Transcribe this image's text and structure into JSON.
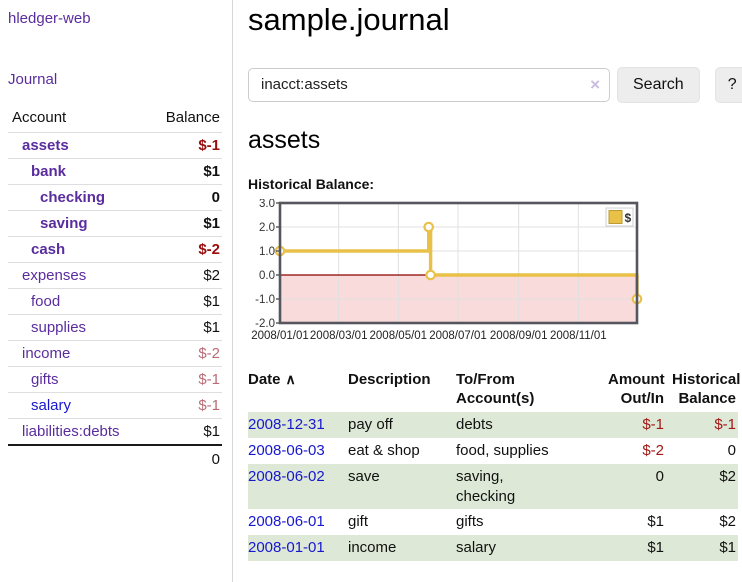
{
  "app": {
    "title": "hledger-web"
  },
  "theme": {
    "purple_link": "#5a2d9e",
    "blue_link": "#1717cf",
    "negative_strong": "#9b0c0c",
    "negative_soft": "#b96c77",
    "row_highlight": "#dde9d6"
  },
  "sidebar": {
    "journal_link": "Journal",
    "accounts": {
      "headers": {
        "account": "Account",
        "balance": "Balance"
      },
      "rows": [
        {
          "label": "assets",
          "indent": 1,
          "bold": true,
          "link_color": "purple",
          "balance": "$-1",
          "balance_style": "negative"
        },
        {
          "label": "bank",
          "indent": 2,
          "bold": true,
          "link_color": "purple",
          "balance": "$1",
          "balance_style": "normal"
        },
        {
          "label": "checking",
          "indent": 3,
          "bold": true,
          "link_color": "purple",
          "balance": "0",
          "balance_style": "normal"
        },
        {
          "label": "saving",
          "indent": 3,
          "bold": true,
          "link_color": "purple",
          "balance": "$1",
          "balance_style": "normal"
        },
        {
          "label": "cash",
          "indent": 2,
          "bold": true,
          "link_color": "purple",
          "balance": "$-2",
          "balance_style": "negative"
        },
        {
          "label": "expenses",
          "indent": 1,
          "bold": false,
          "link_color": "purple",
          "balance": "$2",
          "balance_style": "normal"
        },
        {
          "label": "food",
          "indent": 2,
          "bold": false,
          "link_color": "purple",
          "balance": "$1",
          "balance_style": "normal"
        },
        {
          "label": "supplies",
          "indent": 2,
          "bold": false,
          "link_color": "purple",
          "balance": "$1",
          "balance_style": "normal"
        },
        {
          "label": "income",
          "indent": 1,
          "bold": false,
          "link_color": "purple",
          "balance": "$-2",
          "balance_style": "negative-soft"
        },
        {
          "label": "gifts",
          "indent": 2,
          "bold": false,
          "link_color": "purple",
          "balance": "$-1",
          "balance_style": "negative-soft"
        },
        {
          "label": "salary",
          "indent": 2,
          "bold": false,
          "link_color": "blue",
          "balance": "$-1",
          "balance_style": "negative-soft"
        },
        {
          "label": "liabilities:debts",
          "indent": 1,
          "bold": false,
          "link_color": "purple",
          "balance": "$1",
          "balance_style": "normal"
        }
      ],
      "total": "0"
    }
  },
  "main": {
    "title": "sample.journal",
    "search": {
      "value": "inacct:assets",
      "clear_label": "×",
      "search_button": "Search",
      "help_button": "?"
    },
    "account_heading": "assets",
    "section_label": "Historical Balance:"
  },
  "chart_data": {
    "type": "line",
    "step": true,
    "title": "Historical Balance of assets",
    "x_range": [
      "2008-01-01",
      "2008-12-31"
    ],
    "ylim": [
      -2,
      3
    ],
    "yticks": [
      {
        "value": 3,
        "label": "3.0"
      },
      {
        "value": 2,
        "label": "2.0"
      },
      {
        "value": 1,
        "label": "1.0"
      },
      {
        "value": 0,
        "label": "0.0"
      },
      {
        "value": -1,
        "label": "-1.0"
      },
      {
        "value": -2,
        "label": "-2.0"
      }
    ],
    "xticks": [
      {
        "date": "2008-01-01",
        "label": "2008/01/01"
      },
      {
        "date": "2008-03-01",
        "label": "2008/03/01"
      },
      {
        "date": "2008-05-01",
        "label": "2008/05/01"
      },
      {
        "date": "2008-07-01",
        "label": "2008/07/01"
      },
      {
        "date": "2008-09-01",
        "label": "2008/09/01"
      },
      {
        "date": "2008-11-01",
        "label": "2008/11/01"
      }
    ],
    "series": [
      {
        "name": "$",
        "points": [
          {
            "date": "2008-01-01",
            "value": 1
          },
          {
            "date": "2008-06-01",
            "value": 2
          },
          {
            "date": "2008-06-03",
            "value": 0
          },
          {
            "date": "2008-12-31",
            "value": -1
          }
        ]
      }
    ],
    "legend": {
      "label": "$",
      "position": "top-right"
    },
    "colors": {
      "line": "#e9c048",
      "marker_fill": "#ffffff",
      "below_zero_fill": "#fadbdb",
      "zero_line": "#8b0000",
      "grid": "#e0e0e0",
      "frame": "#56565e",
      "legend_swatch": "#e9c048",
      "legend_swatch_border": "#bb9b33"
    },
    "grid": true
  },
  "register": {
    "headers": {
      "date": "Date",
      "sort_icon": "∧",
      "description": "Description",
      "accounts": "To/From\nAccount(s)",
      "amount": "Amount\nOut/In",
      "balance": "Historical\nBalance"
    },
    "rows": [
      {
        "date": "2008-12-31",
        "description": "pay off",
        "accounts": "debts",
        "amount": "$-1",
        "amount_negative": true,
        "balance": "$-1",
        "balance_negative": true,
        "highlight": true
      },
      {
        "date": "2008-06-03",
        "description": "eat & shop",
        "accounts": "food, supplies",
        "amount": "$-2",
        "amount_negative": true,
        "balance": "0",
        "balance_negative": false,
        "highlight": false
      },
      {
        "date": "2008-06-02",
        "description": "save",
        "accounts": "saving,\nchecking",
        "amount": "0",
        "amount_negative": false,
        "balance": "$2",
        "balance_negative": false,
        "highlight": true
      },
      {
        "date": "2008-06-01",
        "description": "gift",
        "accounts": "gifts",
        "amount": "$1",
        "amount_negative": false,
        "balance": "$2",
        "balance_negative": false,
        "highlight": false
      },
      {
        "date": "2008-01-01",
        "description": "income",
        "accounts": "salary",
        "amount": "$1",
        "amount_negative": false,
        "balance": "$1",
        "balance_negative": false,
        "highlight": true
      }
    ]
  }
}
